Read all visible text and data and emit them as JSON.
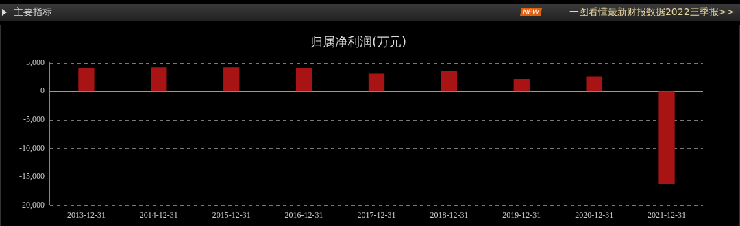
{
  "chart_data": {
    "type": "bar",
    "title": "归属净利润(万元)",
    "categories": [
      "2013-12-31",
      "2014-12-31",
      "2015-12-31",
      "2016-12-31",
      "2017-12-31",
      "2018-12-31",
      "2019-12-31",
      "2020-12-31",
      "2021-12-31"
    ],
    "values": [
      4000,
      4200,
      4200,
      4100,
      3100,
      3500,
      2100,
      2600,
      -16300
    ],
    "color": "#a81414",
    "ylim": [
      -20000,
      5000
    ],
    "yticks": [
      {
        "value": -20000,
        "label": "-20,000"
      },
      {
        "value": -15000,
        "label": "-15,000"
      },
      {
        "value": -10000,
        "label": "-10,000"
      },
      {
        "value": -5000,
        "label": "-5,000"
      },
      0,
      {
        "value": 5000,
        "label": "5,000"
      }
    ],
    "grid": "y",
    "legend": false,
    "annotations": [
      "主要指标",
      "NEW",
      "一图看懂最新财报数据2022三季报>>"
    ]
  }
}
